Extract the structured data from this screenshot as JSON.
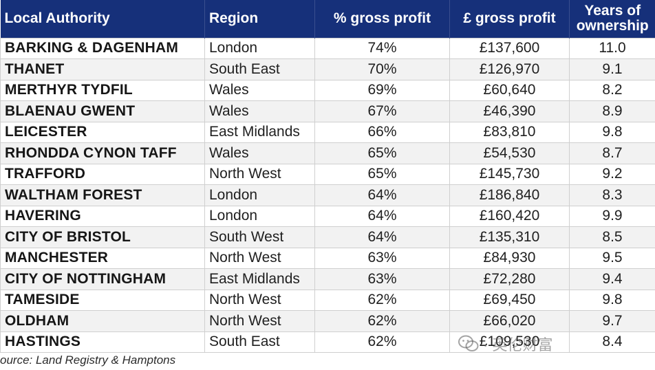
{
  "table": {
    "headers": [
      "Local Authority",
      "Region",
      "% gross profit",
      "£ gross profit",
      "Years of ownership"
    ],
    "rows": [
      [
        "BARKING & DAGENHAM",
        "London",
        "74%",
        "£137,600",
        "11.0"
      ],
      [
        "THANET",
        "South East",
        "70%",
        "£126,970",
        "9.1"
      ],
      [
        "MERTHYR TYDFIL",
        "Wales",
        "69%",
        "£60,640",
        "8.2"
      ],
      [
        "BLAENAU GWENT",
        "Wales",
        "67%",
        "£46,390",
        "8.9"
      ],
      [
        "LEICESTER",
        "East Midlands",
        "66%",
        "£83,810",
        "9.8"
      ],
      [
        "RHONDDA CYNON TAFF",
        "Wales",
        "65%",
        "£54,530",
        "8.7"
      ],
      [
        "TRAFFORD",
        "North West",
        "65%",
        "£145,730",
        "9.2"
      ],
      [
        "WALTHAM FOREST",
        "London",
        "64%",
        "£186,840",
        "8.3"
      ],
      [
        "HAVERING",
        "London",
        "64%",
        "£160,420",
        "9.9"
      ],
      [
        "CITY OF BRISTOL",
        "South West",
        "64%",
        "£135,310",
        "8.5"
      ],
      [
        "MANCHESTER",
        "North West",
        "63%",
        "£84,930",
        "9.5"
      ],
      [
        "CITY OF NOTTINGHAM",
        "East Midlands",
        "63%",
        "£72,280",
        "9.4"
      ],
      [
        "TAMESIDE",
        "North West",
        "62%",
        "£69,450",
        "9.8"
      ],
      [
        "OLDHAM",
        "North West",
        "62%",
        "£66,020",
        "9.7"
      ],
      [
        "HASTINGS",
        "South East",
        "62%",
        "£109,530",
        "8.4"
      ]
    ]
  },
  "source": "ource: Land Registry & Hamptons",
  "watermark": {
    "text": "· 英伦财富",
    "icon": "wechat-icon"
  },
  "colors": {
    "header_bg": "#16307a",
    "header_text": "#ffffff",
    "row_alt": "#f2f2f2",
    "grid": "#cfcfcf"
  }
}
